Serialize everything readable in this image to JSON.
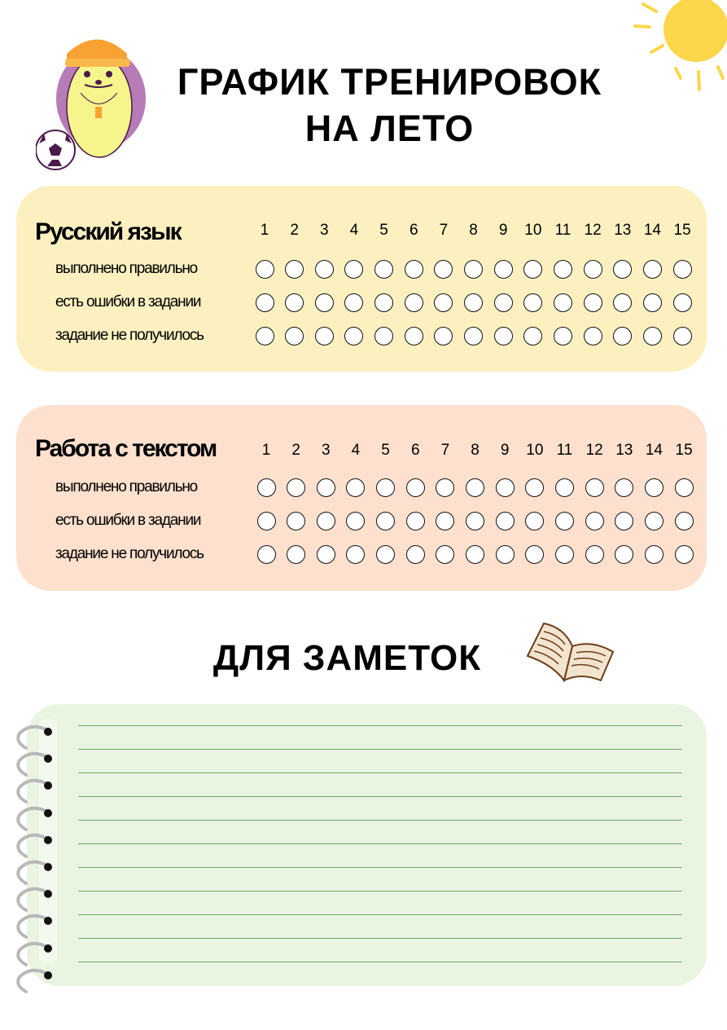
{
  "header": {
    "title_line1": "ГРАФИК ТРЕНИРОВОК",
    "title_line2": "НА ЛЕТО",
    "mascot_icon": "hedgehog-coach-with-soccer-ball",
    "sun_icon": "sun"
  },
  "trackers": [
    {
      "title": "Русский язык",
      "background": "#fdf0c0",
      "days": [
        "1",
        "2",
        "3",
        "4",
        "5",
        "6",
        "7",
        "8",
        "9",
        "10",
        "11",
        "12",
        "13",
        "14",
        "15"
      ],
      "rows": [
        "выполнено правильно",
        "есть ошибки в задании",
        "задание не получилось"
      ]
    },
    {
      "title": "Работа с текстом",
      "background": "#fde0cd",
      "days": [
        "1",
        "2",
        "3",
        "4",
        "5",
        "6",
        "7",
        "8",
        "9",
        "10",
        "11",
        "12",
        "13",
        "14",
        "15"
      ],
      "rows": [
        "выполнено правильно",
        "есть ошибки в задании",
        "задание не получилось"
      ]
    }
  ],
  "notes": {
    "title": "ДЛЯ ЗАМЕТОК",
    "book_icon": "open-book",
    "background": "#eaf5e1",
    "line_color": "#6aa86a"
  }
}
